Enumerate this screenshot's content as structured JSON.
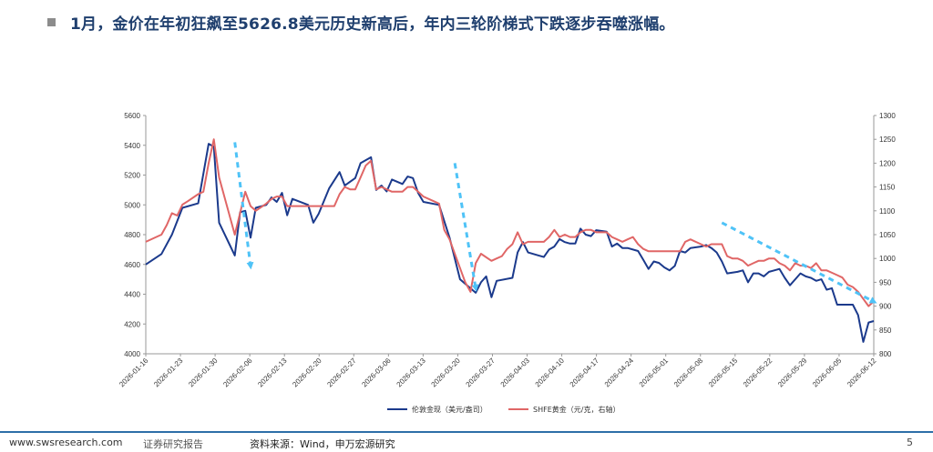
{
  "header": {
    "title": "1月，金价在年初狂飙至5626.8美元历史新高后，年内三轮阶梯式下跌逐步吞噬涨幅。"
  },
  "footer": {
    "url": "www.swsresearch.com",
    "report_label": "证券研究报告",
    "source": "资料来源：Wind，申万宏源研究",
    "page": "5"
  },
  "colors": {
    "series_london": "#1b3a8c",
    "series_shfe": "#e06666",
    "arrows": "#4fc3f7",
    "title": "#1f3f6e",
    "footer_rule": "#2d6ea8"
  },
  "chart_data": {
    "type": "line",
    "x_tick_labels": [
      "2026-01-16",
      "2026-01-23",
      "2026-01-30",
      "2026-02-06",
      "2026-02-13",
      "2026-02-20",
      "2026-02-27",
      "2026-03-06",
      "2026-03-13",
      "2026-03-20",
      "2026-03-27",
      "2026-04-03",
      "2026-04-10",
      "2026-04-17",
      "2026-04-24",
      "2026-05-01",
      "2026-05-08",
      "2026-05-15",
      "2026-05-22",
      "2026-05-29",
      "2026-06-05",
      "2026-06-12"
    ],
    "y_left_ticks": [
      4000,
      4200,
      4400,
      4600,
      4800,
      5000,
      5200,
      5400,
      5600
    ],
    "y_left_range": [
      4000,
      5600
    ],
    "y_right_ticks": [
      800,
      850,
      900,
      950,
      1000,
      1050,
      1100,
      1150,
      1200,
      1250,
      1300
    ],
    "y_right_range": [
      800,
      1300
    ],
    "grid": false,
    "legend_position": "bottom",
    "series": [
      {
        "name": "伦敦金现（美元/盎司）",
        "axis": "left",
        "points": [
          [
            0,
            4600
          ],
          [
            3,
            4670
          ],
          [
            5,
            4800
          ],
          [
            7,
            4980
          ],
          [
            10,
            5010
          ],
          [
            12,
            5410
          ],
          [
            13,
            5390
          ],
          [
            14,
            4880
          ],
          [
            17,
            4660
          ],
          [
            18,
            4950
          ],
          [
            19,
            4960
          ],
          [
            20,
            4780
          ],
          [
            21,
            4980
          ],
          [
            23,
            5000
          ],
          [
            24,
            5050
          ],
          [
            25,
            5020
          ],
          [
            26,
            5080
          ],
          [
            27,
            4930
          ],
          [
            28,
            5040
          ],
          [
            31,
            5000
          ],
          [
            32,
            4880
          ],
          [
            33,
            4940
          ],
          [
            35,
            5110
          ],
          [
            37,
            5220
          ],
          [
            38,
            5130
          ],
          [
            40,
            5180
          ],
          [
            41,
            5280
          ],
          [
            43,
            5320
          ],
          [
            44,
            5100
          ],
          [
            45,
            5130
          ],
          [
            46,
            5090
          ],
          [
            47,
            5170
          ],
          [
            49,
            5140
          ],
          [
            50,
            5190
          ],
          [
            51,
            5180
          ],
          [
            52,
            5080
          ],
          [
            53,
            5020
          ],
          [
            56,
            5000
          ],
          [
            58,
            4780
          ],
          [
            60,
            4500
          ],
          [
            63,
            4410
          ],
          [
            64,
            4480
          ],
          [
            65,
            4520
          ],
          [
            66,
            4380
          ],
          [
            67,
            4490
          ],
          [
            70,
            4510
          ],
          [
            71,
            4680
          ],
          [
            72,
            4750
          ],
          [
            73,
            4680
          ],
          [
            75,
            4660
          ],
          [
            76,
            4650
          ],
          [
            77,
            4700
          ],
          [
            78,
            4720
          ],
          [
            79,
            4770
          ],
          [
            80,
            4750
          ],
          [
            81,
            4740
          ],
          [
            82,
            4740
          ],
          [
            83,
            4840
          ],
          [
            84,
            4800
          ],
          [
            85,
            4790
          ],
          [
            86,
            4830
          ],
          [
            88,
            4820
          ],
          [
            89,
            4720
          ],
          [
            90,
            4740
          ],
          [
            91,
            4710
          ],
          [
            92,
            4710
          ],
          [
            94,
            4690
          ],
          [
            95,
            4630
          ],
          [
            96,
            4570
          ],
          [
            97,
            4620
          ],
          [
            98,
            4610
          ],
          [
            99,
            4580
          ],
          [
            100,
            4560
          ],
          [
            101,
            4590
          ],
          [
            102,
            4690
          ],
          [
            103,
            4680
          ],
          [
            104,
            4710
          ],
          [
            106,
            4720
          ],
          [
            107,
            4730
          ],
          [
            108,
            4710
          ],
          [
            109,
            4680
          ],
          [
            110,
            4620
          ],
          [
            111,
            4540
          ],
          [
            113,
            4550
          ],
          [
            114,
            4560
          ],
          [
            115,
            4480
          ],
          [
            116,
            4540
          ],
          [
            117,
            4540
          ],
          [
            118,
            4520
          ],
          [
            119,
            4550
          ],
          [
            120,
            4560
          ],
          [
            121,
            4570
          ],
          [
            122,
            4510
          ],
          [
            123,
            4460
          ],
          [
            124,
            4500
          ],
          [
            125,
            4540
          ],
          [
            126,
            4520
          ],
          [
            127,
            4510
          ],
          [
            128,
            4490
          ],
          [
            129,
            4500
          ],
          [
            130,
            4430
          ],
          [
            131,
            4440
          ],
          [
            132,
            4330
          ],
          [
            135,
            4330
          ],
          [
            136,
            4260
          ],
          [
            137,
            4080
          ],
          [
            138,
            4210
          ],
          [
            139,
            4220
          ]
        ]
      },
      {
        "name": "SHFE黄金（元/克，右轴）",
        "axis": "right",
        "points": [
          [
            0,
            1035
          ],
          [
            3,
            1050
          ],
          [
            4,
            1070
          ],
          [
            5,
            1095
          ],
          [
            6,
            1090
          ],
          [
            7,
            1113
          ],
          [
            8,
            1120
          ],
          [
            10,
            1135
          ],
          [
            11,
            1140
          ],
          [
            12,
            1200
          ],
          [
            13,
            1250
          ],
          [
            14,
            1170
          ],
          [
            17,
            1050
          ],
          [
            19,
            1140
          ],
          [
            20,
            1110
          ],
          [
            21,
            1100
          ],
          [
            23,
            1115
          ],
          [
            24,
            1125
          ],
          [
            25,
            1130
          ],
          [
            26,
            1130
          ],
          [
            27,
            1110
          ],
          [
            28,
            1110
          ],
          [
            32,
            1110
          ],
          [
            33,
            1110
          ],
          [
            34,
            1110
          ],
          [
            35,
            1110
          ],
          [
            36,
            1110
          ],
          [
            37,
            1135
          ],
          [
            38,
            1150
          ],
          [
            39,
            1145
          ],
          [
            40,
            1145
          ],
          [
            41,
            1170
          ],
          [
            42,
            1195
          ],
          [
            43,
            1205
          ],
          [
            44,
            1145
          ],
          [
            45,
            1150
          ],
          [
            46,
            1145
          ],
          [
            47,
            1140
          ],
          [
            49,
            1140
          ],
          [
            50,
            1150
          ],
          [
            51,
            1150
          ],
          [
            52,
            1140
          ],
          [
            53,
            1130
          ],
          [
            55,
            1120
          ],
          [
            56,
            1115
          ],
          [
            57,
            1060
          ],
          [
            58,
            1040
          ],
          [
            61,
            950
          ],
          [
            62,
            930
          ],
          [
            63,
            990
          ],
          [
            64,
            1010
          ],
          [
            66,
            995
          ],
          [
            67,
            1000
          ],
          [
            68,
            1005
          ],
          [
            69,
            1020
          ],
          [
            70,
            1030
          ],
          [
            71,
            1055
          ],
          [
            72,
            1030
          ],
          [
            73,
            1035
          ],
          [
            76,
            1035
          ],
          [
            77,
            1045
          ],
          [
            78,
            1060
          ],
          [
            79,
            1045
          ],
          [
            80,
            1050
          ],
          [
            81,
            1045
          ],
          [
            82,
            1045
          ],
          [
            83,
            1055
          ],
          [
            84,
            1060
          ],
          [
            85,
            1060
          ],
          [
            86,
            1055
          ],
          [
            88,
            1055
          ],
          [
            89,
            1045
          ],
          [
            90,
            1040
          ],
          [
            91,
            1035
          ],
          [
            92,
            1040
          ],
          [
            93,
            1045
          ],
          [
            94,
            1030
          ],
          [
            95,
            1020
          ],
          [
            96,
            1015
          ],
          [
            99,
            1015
          ],
          [
            100,
            1015
          ],
          [
            101,
            1015
          ],
          [
            102,
            1015
          ],
          [
            103,
            1035
          ],
          [
            104,
            1040
          ],
          [
            105,
            1035
          ],
          [
            106,
            1030
          ],
          [
            107,
            1025
          ],
          [
            108,
            1030
          ],
          [
            109,
            1030
          ],
          [
            110,
            1030
          ],
          [
            111,
            1005
          ],
          [
            112,
            1000
          ],
          [
            113,
            1000
          ],
          [
            114,
            995
          ],
          [
            115,
            985
          ],
          [
            116,
            990
          ],
          [
            117,
            995
          ],
          [
            118,
            995
          ],
          [
            119,
            1000
          ],
          [
            120,
            1000
          ],
          [
            121,
            990
          ],
          [
            122,
            985
          ],
          [
            123,
            975
          ],
          [
            124,
            990
          ],
          [
            125,
            985
          ],
          [
            126,
            985
          ],
          [
            127,
            980
          ],
          [
            128,
            990
          ],
          [
            129,
            975
          ],
          [
            130,
            975
          ],
          [
            131,
            970
          ],
          [
            132,
            965
          ],
          [
            133,
            960
          ],
          [
            134,
            945
          ],
          [
            135,
            940
          ],
          [
            136,
            930
          ],
          [
            137,
            915
          ],
          [
            138,
            900
          ],
          [
            139,
            910
          ]
        ]
      }
    ],
    "annotations": [
      {
        "type": "dashed-arrow",
        "from": [
          17,
          5420
        ],
        "to": [
          20,
          4590
        ]
      },
      {
        "type": "dashed-arrow",
        "from": [
          59,
          5280
        ],
        "to": [
          63,
          4440
        ]
      },
      {
        "type": "dashed-arrow",
        "from": [
          110,
          4880
        ],
        "to": [
          139,
          4350
        ]
      }
    ]
  }
}
